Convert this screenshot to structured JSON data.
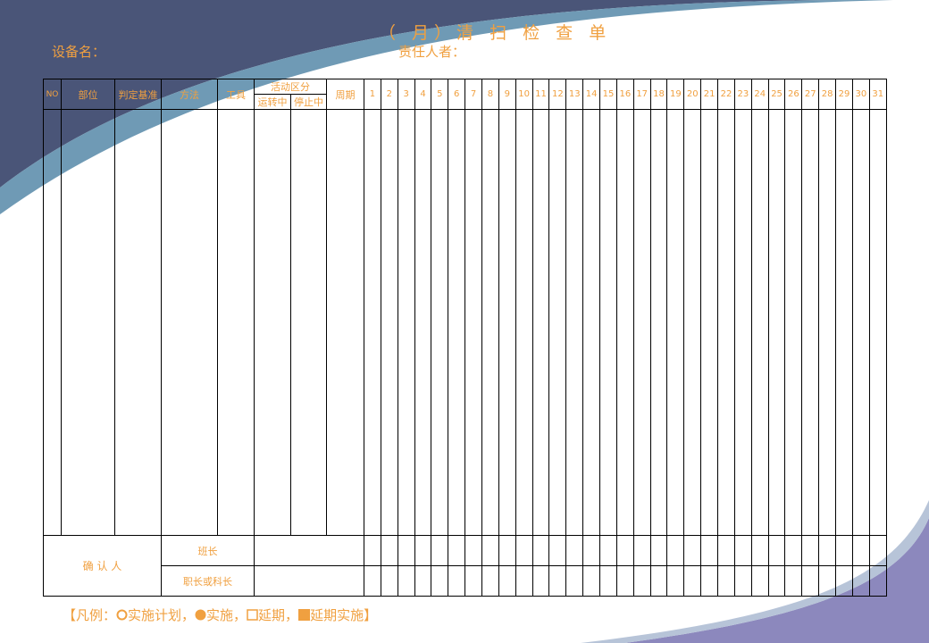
{
  "colors": {
    "text": "#f0a040",
    "navy": "#4a5578",
    "band": "#6f9ab5",
    "purple": "#8c88bd"
  },
  "header": {
    "title": "（  月）清 扫 检 查 单",
    "equipment_label": "设备名：",
    "responsible_label": "责任人者："
  },
  "table": {
    "columns": {
      "no": "NO",
      "part": "部位",
      "criteria": "判定基准",
      "method": "方法",
      "tool": "工具",
      "activity": "活动区分",
      "running": "运转中",
      "stopped": "停止中",
      "cycle": "周期"
    },
    "days": [
      "1",
      "2",
      "3",
      "4",
      "5",
      "6",
      "7",
      "8",
      "9",
      "10",
      "11",
      "12",
      "13",
      "14",
      "15",
      "16",
      "17",
      "18",
      "19",
      "20",
      "21",
      "22",
      "23",
      "24",
      "25",
      "26",
      "27",
      "28",
      "29",
      "30",
      "31"
    ],
    "confirm": {
      "label": "确    认    人",
      "leader": "班长",
      "chief": "职长或科长"
    }
  },
  "legend": {
    "open": "【凡例：",
    "plan": "实施计划，",
    "done": "实施，",
    "delay": "延期，",
    "delay_done": "延期实施】"
  }
}
